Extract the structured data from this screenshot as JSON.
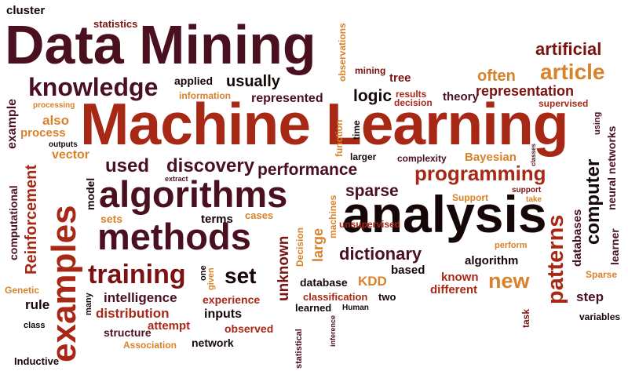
{
  "palette": {
    "background": "#ffffff",
    "dark": "#4a1020",
    "red": "#a82816",
    "orange": "#d8822a",
    "darkred": "#7a1212",
    "black": "#150707"
  },
  "words": [
    {
      "text": "Data Mining",
      "color": "dark"
    },
    {
      "text": "Machine Learning",
      "color": "red"
    },
    {
      "text": "analysis",
      "color": "black"
    },
    {
      "text": "algorithms",
      "color": "dark"
    },
    {
      "text": "methods",
      "color": "dark"
    },
    {
      "text": "examples",
      "color": "red"
    },
    {
      "text": "knowledge",
      "color": "dark"
    },
    {
      "text": "training",
      "color": "darkred"
    },
    {
      "text": "article",
      "color": "orange"
    },
    {
      "text": "artificial",
      "color": "darkred"
    },
    {
      "text": "programming",
      "color": "red"
    },
    {
      "text": "patterns",
      "color": "red"
    },
    {
      "text": "computer",
      "color": "black"
    },
    {
      "text": "dictionary",
      "color": "dark"
    },
    {
      "text": "discovery",
      "color": "dark"
    },
    {
      "text": "used",
      "color": "dark"
    },
    {
      "text": "performance",
      "color": "dark"
    },
    {
      "text": "sparse",
      "color": "dark"
    },
    {
      "text": "set",
      "color": "black"
    },
    {
      "text": "new",
      "color": "orange"
    },
    {
      "text": "often",
      "color": "orange"
    },
    {
      "text": "representation",
      "color": "darkred"
    },
    {
      "text": "logic",
      "color": "black"
    },
    {
      "text": "usually",
      "color": "black"
    },
    {
      "text": "statistics",
      "color": "darkred"
    },
    {
      "text": "cluster",
      "color": "black"
    },
    {
      "text": "applied",
      "color": "black"
    },
    {
      "text": "information",
      "color": "orange"
    },
    {
      "text": "represented",
      "color": "dark"
    },
    {
      "text": "processing",
      "color": "orange"
    },
    {
      "text": "also",
      "color": "orange"
    },
    {
      "text": "process",
      "color": "orange"
    },
    {
      "text": "outputs",
      "color": "black"
    },
    {
      "text": "vector",
      "color": "orange"
    },
    {
      "text": "example",
      "color": "dark"
    },
    {
      "text": "computational",
      "color": "dark"
    },
    {
      "text": "Reinforcement",
      "color": "red"
    },
    {
      "text": "Genetic",
      "color": "orange"
    },
    {
      "text": "rule",
      "color": "black"
    },
    {
      "text": "class",
      "color": "black"
    },
    {
      "text": "Inductive",
      "color": "black"
    },
    {
      "text": "model",
      "color": "black"
    },
    {
      "text": "extract",
      "color": "dark"
    },
    {
      "text": "sets",
      "color": "orange"
    },
    {
      "text": "terms",
      "color": "black"
    },
    {
      "text": "cases",
      "color": "orange"
    },
    {
      "text": "intelligence",
      "color": "dark"
    },
    {
      "text": "distribution",
      "color": "red"
    },
    {
      "text": "structure",
      "color": "dark"
    },
    {
      "text": "many",
      "color": "black"
    },
    {
      "text": "attempt",
      "color": "red"
    },
    {
      "text": "Association",
      "color": "orange"
    },
    {
      "text": "network",
      "color": "black"
    },
    {
      "text": "experience",
      "color": "red"
    },
    {
      "text": "given",
      "color": "orange"
    },
    {
      "text": "one",
      "color": "black"
    },
    {
      "text": "inputs",
      "color": "black"
    },
    {
      "text": "observed",
      "color": "red"
    },
    {
      "text": "statistical",
      "color": "dark"
    },
    {
      "text": "unknown",
      "color": "darkred"
    },
    {
      "text": "large",
      "color": "orange"
    },
    {
      "text": "machines",
      "color": "orange"
    },
    {
      "text": "Decision",
      "color": "orange"
    },
    {
      "text": "unsupervised",
      "color": "red"
    },
    {
      "text": "database",
      "color": "black"
    },
    {
      "text": "KDD",
      "color": "orange"
    },
    {
      "text": "based",
      "color": "black"
    },
    {
      "text": "classification",
      "color": "red"
    },
    {
      "text": "two",
      "color": "black"
    },
    {
      "text": "learned",
      "color": "black"
    },
    {
      "text": "Human",
      "color": "black"
    },
    {
      "text": "inference",
      "color": "dark"
    },
    {
      "text": "known",
      "color": "red"
    },
    {
      "text": "different",
      "color": "red"
    },
    {
      "text": "algorithm",
      "color": "black"
    },
    {
      "text": "Support",
      "color": "orange"
    },
    {
      "text": "perform",
      "color": "orange"
    },
    {
      "text": "support",
      "color": "darkred"
    },
    {
      "text": "take",
      "color": "orange"
    },
    {
      "text": "databases",
      "color": "dark"
    },
    {
      "text": "neural networks",
      "color": "dark"
    },
    {
      "text": "learner",
      "color": "dark"
    },
    {
      "text": "Sparse",
      "color": "orange"
    },
    {
      "text": "step",
      "color": "dark"
    },
    {
      "text": "variables",
      "color": "black"
    },
    {
      "text": "task",
      "color": "darkred"
    },
    {
      "text": "observations",
      "color": "orange"
    },
    {
      "text": "mining",
      "color": "darkred"
    },
    {
      "text": "tree",
      "color": "darkred"
    },
    {
      "text": "results",
      "color": "red"
    },
    {
      "text": "decision",
      "color": "red"
    },
    {
      "text": "theory",
      "color": "dark"
    },
    {
      "text": "supervised",
      "color": "red"
    },
    {
      "text": "function",
      "color": "orange"
    },
    {
      "text": "time",
      "color": "black"
    },
    {
      "text": "larger",
      "color": "black"
    },
    {
      "text": "complexity",
      "color": "dark"
    },
    {
      "text": "Bayesian",
      "color": "orange"
    },
    {
      "text": "classes",
      "color": "dark"
    },
    {
      "text": "using",
      "color": "dark"
    }
  ]
}
